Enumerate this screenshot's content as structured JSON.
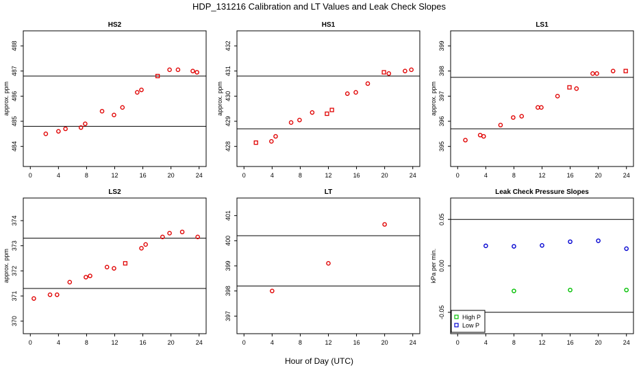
{
  "figure": {
    "title": "HDP_131216  Calibration and LT Values and Leak Check Slopes",
    "xlabel": "Hour of Day (UTC)"
  },
  "colors": {
    "cal": "#e00000",
    "high_p": "#00c000",
    "low_p": "#0000d0",
    "line": "#000000"
  },
  "chart_data": [
    {
      "id": "hs2",
      "type": "scatter",
      "title": "HS2",
      "ylabel": "approx. ppm",
      "xlim": [
        -1,
        25
      ],
      "ylim": [
        483.2,
        488.6
      ],
      "xticks": [
        0,
        4,
        8,
        12,
        16,
        20,
        24
      ],
      "yticks": [
        484,
        485,
        486,
        487,
        488
      ],
      "hlines": [
        484.8,
        486.8
      ],
      "points": [
        {
          "x": 2.2,
          "y": 484.5,
          "m": "c"
        },
        {
          "x": 4.0,
          "y": 484.6,
          "m": "c"
        },
        {
          "x": 5.0,
          "y": 484.7,
          "m": "c"
        },
        {
          "x": 7.2,
          "y": 484.75,
          "m": "c"
        },
        {
          "x": 7.8,
          "y": 484.9,
          "m": "c"
        },
        {
          "x": 10.2,
          "y": 485.4,
          "m": "c"
        },
        {
          "x": 11.9,
          "y": 485.25,
          "m": "c"
        },
        {
          "x": 13.1,
          "y": 485.55,
          "m": "c"
        },
        {
          "x": 15.2,
          "y": 486.15,
          "m": "c"
        },
        {
          "x": 15.8,
          "y": 486.25,
          "m": "c"
        },
        {
          "x": 18.1,
          "y": 486.8,
          "m": "s"
        },
        {
          "x": 19.8,
          "y": 487.05,
          "m": "c"
        },
        {
          "x": 21.0,
          "y": 487.05,
          "m": "c"
        },
        {
          "x": 23.1,
          "y": 487.0,
          "m": "c"
        },
        {
          "x": 23.7,
          "y": 486.95,
          "m": "c"
        }
      ]
    },
    {
      "id": "hs1",
      "type": "scatter",
      "title": "HS1",
      "ylabel": "approx. ppm",
      "xlim": [
        -1,
        25
      ],
      "ylim": [
        427.2,
        432.6
      ],
      "xticks": [
        0,
        4,
        8,
        12,
        16,
        20,
        24
      ],
      "yticks": [
        428,
        429,
        430,
        431,
        432
      ],
      "hlines": [
        428.7,
        430.8
      ],
      "points": [
        {
          "x": 1.7,
          "y": 428.15,
          "m": "s"
        },
        {
          "x": 3.9,
          "y": 428.2,
          "m": "c"
        },
        {
          "x": 4.5,
          "y": 428.4,
          "m": "c"
        },
        {
          "x": 6.7,
          "y": 428.95,
          "m": "c"
        },
        {
          "x": 7.9,
          "y": 429.05,
          "m": "c"
        },
        {
          "x": 9.7,
          "y": 429.35,
          "m": "c"
        },
        {
          "x": 11.8,
          "y": 429.3,
          "m": "s"
        },
        {
          "x": 12.5,
          "y": 429.45,
          "m": "s"
        },
        {
          "x": 14.7,
          "y": 430.1,
          "m": "c"
        },
        {
          "x": 15.9,
          "y": 430.15,
          "m": "c"
        },
        {
          "x": 17.6,
          "y": 430.5,
          "m": "c"
        },
        {
          "x": 19.9,
          "y": 430.95,
          "m": "s"
        },
        {
          "x": 20.6,
          "y": 430.9,
          "m": "c"
        },
        {
          "x": 22.9,
          "y": 431.0,
          "m": "c"
        },
        {
          "x": 23.8,
          "y": 431.05,
          "m": "c"
        }
      ]
    },
    {
      "id": "ls1",
      "type": "scatter",
      "title": "LS1",
      "ylabel": "approx. ppm",
      "xlim": [
        -1,
        25
      ],
      "ylim": [
        394.2,
        399.6
      ],
      "xticks": [
        0,
        4,
        8,
        12,
        16,
        20,
        24
      ],
      "yticks": [
        395,
        396,
        397,
        398,
        399
      ],
      "hlines": [
        395.7,
        397.75
      ],
      "points": [
        {
          "x": 1.1,
          "y": 395.25,
          "m": "c"
        },
        {
          "x": 3.2,
          "y": 395.45,
          "m": "c"
        },
        {
          "x": 3.7,
          "y": 395.4,
          "m": "c"
        },
        {
          "x": 6.1,
          "y": 395.85,
          "m": "c"
        },
        {
          "x": 7.9,
          "y": 396.15,
          "m": "c"
        },
        {
          "x": 9.1,
          "y": 396.2,
          "m": "c"
        },
        {
          "x": 11.4,
          "y": 396.55,
          "m": "c"
        },
        {
          "x": 11.9,
          "y": 396.55,
          "m": "c"
        },
        {
          "x": 14.2,
          "y": 397.0,
          "m": "c"
        },
        {
          "x": 15.9,
          "y": 397.35,
          "m": "s"
        },
        {
          "x": 16.9,
          "y": 397.3,
          "m": "c"
        },
        {
          "x": 19.2,
          "y": 397.9,
          "m": "c"
        },
        {
          "x": 19.8,
          "y": 397.9,
          "m": "c"
        },
        {
          "x": 22.1,
          "y": 398.0,
          "m": "c"
        },
        {
          "x": 23.9,
          "y": 398.0,
          "m": "s"
        }
      ]
    },
    {
      "id": "ls2",
      "type": "scatter",
      "title": "LS2",
      "ylabel": "approx. ppm",
      "xlim": [
        -1,
        25
      ],
      "ylim": [
        369.5,
        374.9
      ],
      "xticks": [
        0,
        4,
        8,
        12,
        16,
        20,
        24
      ],
      "yticks": [
        370,
        371,
        372,
        373,
        374
      ],
      "hlines": [
        371.3,
        373.3
      ],
      "points": [
        {
          "x": 0.5,
          "y": 370.9,
          "m": "c"
        },
        {
          "x": 2.8,
          "y": 371.05,
          "m": "c"
        },
        {
          "x": 3.8,
          "y": 371.05,
          "m": "c"
        },
        {
          "x": 5.6,
          "y": 371.55,
          "m": "c"
        },
        {
          "x": 7.9,
          "y": 371.75,
          "m": "c"
        },
        {
          "x": 8.5,
          "y": 371.8,
          "m": "c"
        },
        {
          "x": 10.9,
          "y": 372.15,
          "m": "c"
        },
        {
          "x": 11.9,
          "y": 372.1,
          "m": "c"
        },
        {
          "x": 13.5,
          "y": 372.3,
          "m": "s"
        },
        {
          "x": 15.8,
          "y": 372.9,
          "m": "c"
        },
        {
          "x": 16.4,
          "y": 373.05,
          "m": "c"
        },
        {
          "x": 18.8,
          "y": 373.35,
          "m": "c"
        },
        {
          "x": 19.8,
          "y": 373.5,
          "m": "c"
        },
        {
          "x": 21.6,
          "y": 373.55,
          "m": "c"
        },
        {
          "x": 23.8,
          "y": 373.35,
          "m": "c"
        }
      ]
    },
    {
      "id": "lt",
      "type": "scatter",
      "title": "LT",
      "ylabel": "",
      "xlim": [
        -1,
        25
      ],
      "ylim": [
        396.3,
        401.7
      ],
      "xticks": [
        0,
        4,
        8,
        12,
        16,
        20,
        24
      ],
      "yticks": [
        397,
        398,
        399,
        400,
        401
      ],
      "hlines": [
        398.2,
        400.2
      ],
      "points": [
        {
          "x": 4.0,
          "y": 398.0,
          "m": "c"
        },
        {
          "x": 12.0,
          "y": 399.1,
          "m": "c"
        },
        {
          "x": 20.0,
          "y": 400.65,
          "m": "c"
        }
      ]
    },
    {
      "id": "leak",
      "type": "scatter",
      "title": "Leak Check Pressure Slopes",
      "ylabel": "kPa per min.",
      "xlim": [
        -1,
        25
      ],
      "ylim": [
        -0.073,
        0.073
      ],
      "xticks": [
        0,
        4,
        8,
        12,
        16,
        20,
        24
      ],
      "yticks": [
        -0.05,
        0.0,
        0.05
      ],
      "ytick_labels": [
        "-0.05",
        "0.00",
        "0.05"
      ],
      "hlines": [
        0.05,
        -0.05
      ],
      "series": [
        {
          "name": "High P",
          "color_key": "high_p",
          "points": [
            {
              "x": 8,
              "y": -0.027
            },
            {
              "x": 16,
              "y": -0.026
            },
            {
              "x": 24,
              "y": -0.026
            }
          ]
        },
        {
          "name": "Low P",
          "color_key": "low_p",
          "points": [
            {
              "x": 4,
              "y": 0.0215
            },
            {
              "x": 8,
              "y": 0.021
            },
            {
              "x": 12,
              "y": 0.022
            },
            {
              "x": 16,
              "y": 0.026
            },
            {
              "x": 20,
              "y": 0.027
            },
            {
              "x": 24,
              "y": 0.0185
            }
          ]
        }
      ],
      "legend": {
        "position": "bottom-left",
        "entries": [
          "High P",
          "Low P"
        ]
      }
    }
  ]
}
